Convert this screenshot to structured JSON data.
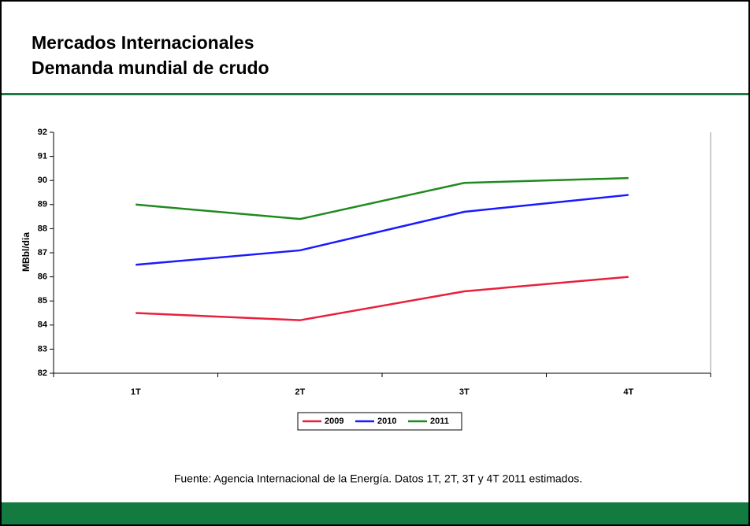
{
  "chart_data": {
    "type": "line",
    "title": "Mercados Internacionales",
    "subtitle": "Demanda mundial de crudo",
    "y_label": "MBbl/dia",
    "categories": [
      "1T",
      "2T",
      "3T",
      "4T"
    ],
    "series": [
      {
        "name": "2009",
        "color": "#e8203c",
        "values": [
          84.5,
          84.2,
          85.4,
          86.0
        ]
      },
      {
        "name": "2010",
        "color": "#1a1aff",
        "values": [
          86.5,
          87.1,
          88.7,
          89.4
        ]
      },
      {
        "name": "2011",
        "color": "#1f8a1f",
        "values": [
          89.0,
          88.4,
          89.9,
          90.1
        ]
      }
    ],
    "ylim": [
      82,
      92
    ],
    "yticks": [
      82,
      83,
      84,
      85,
      86,
      87,
      88,
      89,
      90,
      91,
      92
    ],
    "legend": "bottom",
    "source": "Fuente: Agencia Internacional de la Energía. Datos 1T, 2T, 3T y 4T 2011 estimados."
  }
}
